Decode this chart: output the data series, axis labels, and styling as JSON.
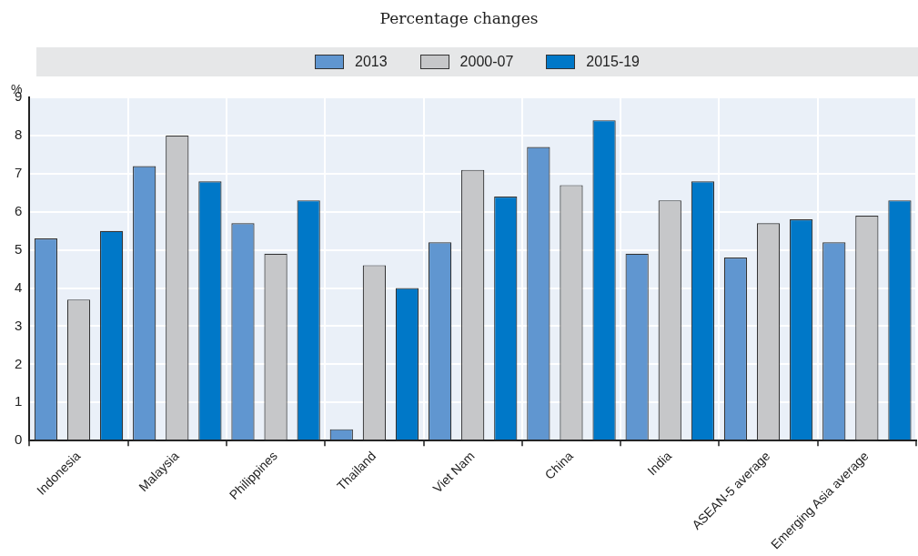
{
  "chart_data": {
    "type": "bar",
    "subtitle": "Percentage changes",
    "ylabel": "%",
    "categories": [
      "Indonesia",
      "Malaysia",
      "Philippines",
      "Thailand",
      "Viet Nam",
      "China",
      "India",
      "ASEAN-5 average",
      "Emerging Asia average"
    ],
    "series": [
      {
        "name": "2013",
        "color": "#6096d0",
        "values": [
          5.3,
          7.2,
          5.7,
          0.3,
          5.2,
          7.7,
          4.9,
          4.8,
          5.2
        ]
      },
      {
        "name": "2000-07",
        "color": "#c6c7c9",
        "values": [
          3.7,
          8.0,
          4.9,
          4.6,
          7.1,
          6.7,
          6.3,
          5.7,
          5.9
        ]
      },
      {
        "name": "2015-19",
        "color": "#0078c8",
        "values": [
          5.5,
          6.8,
          6.3,
          4.0,
          6.4,
          8.4,
          6.8,
          5.8,
          6.3
        ]
      }
    ],
    "ylim": [
      0,
      9
    ],
    "yticks": [
      0,
      1,
      2,
      3,
      4,
      5,
      6,
      7,
      8,
      9
    ],
    "grid": true,
    "legend": "top"
  }
}
